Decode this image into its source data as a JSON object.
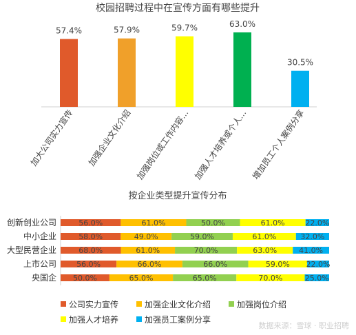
{
  "chart_data": [
    {
      "type": "bar",
      "title": "校园招聘过程中在宣传方面有哪些提升",
      "categories": [
        "加大公司实力宣传",
        "加强企业文化介绍",
        "加强岗位或工作内容…",
        "加强人才培养或个人…",
        "增加员工个人案例分享"
      ],
      "values": [
        57.4,
        57.9,
        59.7,
        63.0,
        30.5
      ],
      "value_labels": [
        "57.4%",
        "57.9%",
        "59.7%",
        "63.0%",
        "30.5%"
      ],
      "colors": [
        "#E05A2B",
        "#F0A02A",
        "#FFFF00",
        "#00B050",
        "#00B0F0"
      ],
      "grid": false
    },
    {
      "type": "stacked_bar_horizontal",
      "title": "按企业类型提升宣传分布",
      "categories": [
        "创新创业公司",
        "中小企业",
        "大型民营企业",
        "上市公司",
        "央国企"
      ],
      "series": [
        {
          "name": "公司实力宣传",
          "color": "#E05A2B",
          "values": [
            56.0,
            58.0,
            68.0,
            56.0,
            50.0
          ],
          "labels": [
            "56.0%",
            "58.0%",
            "68.0%",
            "56.0%",
            "50.0%"
          ]
        },
        {
          "name": "加强企业文化介绍",
          "color": "#FFC000",
          "values": [
            61.0,
            49.0,
            61.0,
            66.0,
            65.0
          ],
          "labels": [
            "61.0%",
            "49.0%",
            "61.0%",
            "66.0%",
            "65.0%"
          ]
        },
        {
          "name": "加强岗位介绍",
          "color": "#92D050",
          "values": [
            50.0,
            59.0,
            70.0,
            66.0,
            65.0
          ],
          "labels": [
            "50.0%",
            "59.0%",
            "70.0%",
            "66.0%",
            "65.0%"
          ]
        },
        {
          "name": "加强人才培养",
          "color": "#FFFF00",
          "values": [
            61.0,
            61.0,
            63.0,
            59.0,
            70.0
          ],
          "labels": [
            "61.0%",
            "61.0%",
            "63.0%",
            "59.0%",
            "70.0%"
          ]
        },
        {
          "name": "加强员工案例分享",
          "color": "#00B0F0",
          "values": [
            22.0,
            32.0,
            41.0,
            22.0,
            25.0
          ],
          "labels": [
            "22.0%",
            "32.0%",
            "41.0%",
            "22.0%",
            "25.0%"
          ]
        }
      ],
      "legend_position": "bottom"
    }
  ],
  "watermark": "数据来源：雪球 · 职业招聘"
}
